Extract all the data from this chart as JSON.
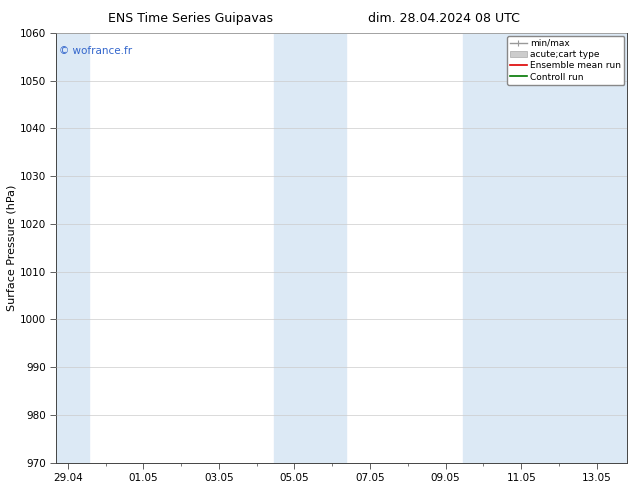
{
  "title_left": "ENS Time Series Guipavas",
  "title_right": "dim. 28.04.2024 08 UTC",
  "ylabel": "Surface Pressure (hPa)",
  "ylim": [
    970,
    1060
  ],
  "yticks": [
    970,
    980,
    990,
    1000,
    1010,
    1020,
    1030,
    1040,
    1050,
    1060
  ],
  "xtick_labels": [
    "29.04",
    "01.05",
    "03.05",
    "05.05",
    "07.05",
    "09.05",
    "11.05",
    "13.05"
  ],
  "xtick_positions": [
    0,
    2,
    4,
    6,
    8,
    10,
    12,
    14
  ],
  "xlim": [
    -0.3,
    14.8
  ],
  "copyright_text": "© wofrance.fr",
  "copyright_color": "#3366cc",
  "bg_color": "#ffffff",
  "plot_bg_color": "#ffffff",
  "band_color": "#dce9f5",
  "bands": [
    {
      "xmin": -0.3,
      "xmax": 0.55
    },
    {
      "xmin": 5.45,
      "xmax": 7.35
    },
    {
      "xmin": 10.45,
      "xmax": 14.8
    }
  ],
  "legend_entries": [
    {
      "label": "min/max"
    },
    {
      "label": "acute;cart type"
    },
    {
      "label": "Ensemble mean run"
    },
    {
      "label": "Controll run"
    }
  ],
  "font_size": 7.5,
  "title_font_size": 9,
  "ylabel_font_size": 8
}
